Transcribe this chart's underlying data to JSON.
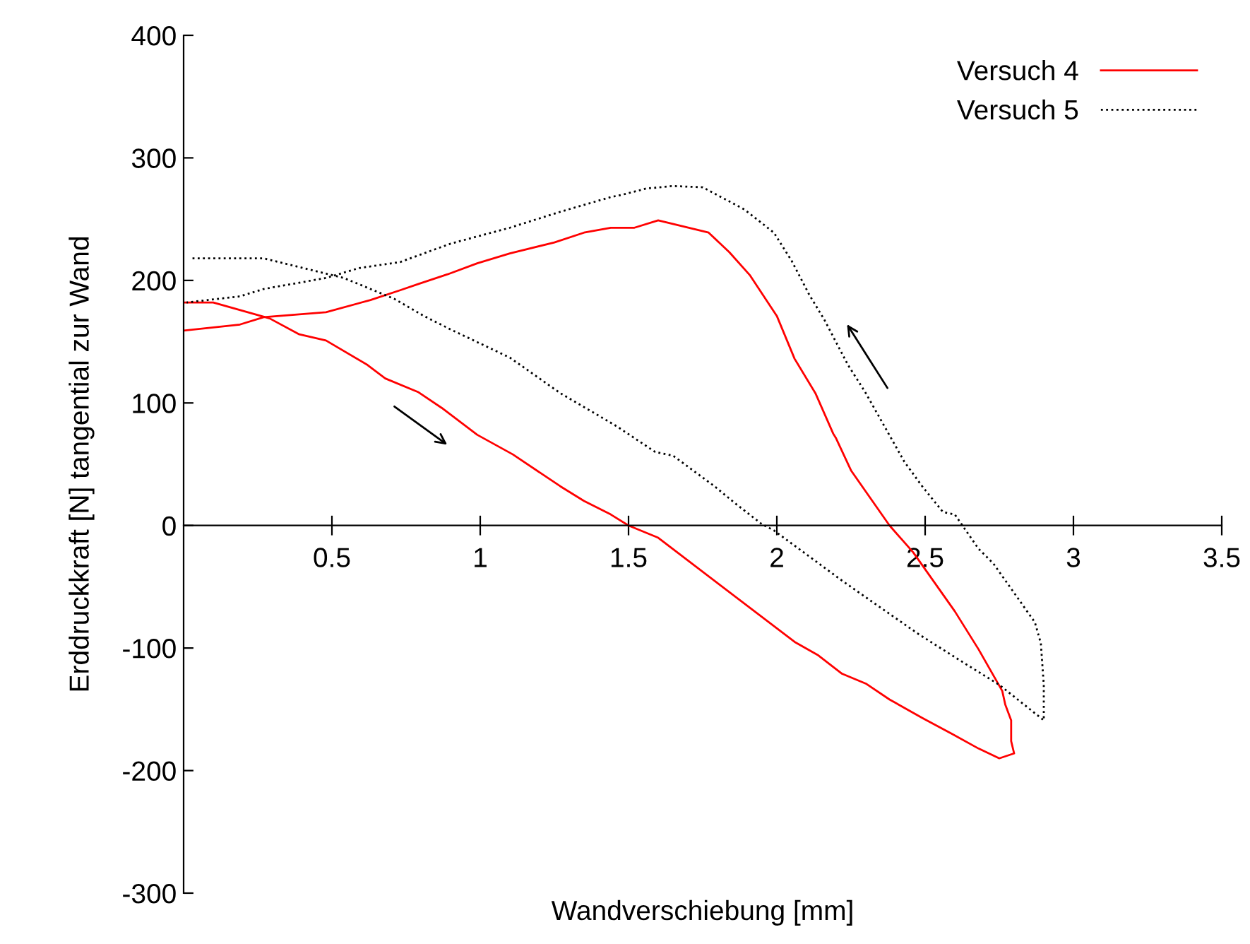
{
  "chart_data": {
    "type": "line",
    "xlabel": "Wandverschiebung [mm]",
    "ylabel": "Erddruckkraft [N] tangential zur Wand",
    "xlim": [
      0,
      3.5
    ],
    "ylim": [
      -300,
      400
    ],
    "xticks": [
      0.5,
      1,
      1.5,
      2,
      2.5,
      3,
      3.5
    ],
    "yticks": [
      -300,
      -200,
      -100,
      0,
      100,
      200,
      300,
      400
    ],
    "grid": false,
    "legend": "top right",
    "marker": "none",
    "series": [
      {
        "name": "Versuch 4",
        "color": "#ff0000",
        "line_style": "solid",
        "x": [
          0,
          0.1,
          0.29,
          0.39,
          0.48,
          0.62,
          0.68,
          0.79,
          0.87,
          0.99,
          1.11,
          1.27,
          1.35,
          1.44,
          1.5,
          1.6,
          2.06,
          2.14,
          2.22,
          2.3,
          2.38,
          2.49,
          2.59,
          2.68,
          2.75,
          2.8,
          2.79,
          2.79,
          2.77,
          2.76,
          2.68,
          2.6,
          2.46,
          2.38,
          2.25,
          2.2,
          2.19,
          2.13,
          2.06,
          2.0,
          1.91,
          1.84,
          1.77,
          1.6,
          1.52,
          1.44,
          1.35,
          1.25,
          1.1,
          0.99,
          0.89,
          0.79,
          0.73,
          0.63,
          0.48,
          0.27,
          0.19,
          0
        ],
        "values": [
          182,
          182,
          169,
          156,
          151,
          131,
          120,
          109,
          96,
          74,
          58,
          32,
          20,
          9,
          0,
          -10,
          -95,
          -106,
          -121,
          -129,
          -142,
          -157,
          -170,
          -182,
          -190,
          -186,
          -176,
          -159,
          -146,
          -135,
          -101,
          -70,
          -22,
          0,
          45,
          71,
          75,
          108,
          136,
          171,
          204,
          223,
          239,
          249,
          243,
          243,
          239,
          231,
          222,
          214,
          205,
          197,
          192,
          184,
          174,
          170,
          164,
          159
        ]
      },
      {
        "name": "Versuch 5",
        "color": "#000000",
        "line_style": "dotted",
        "x": [
          0.03,
          0.27,
          0.54,
          0.71,
          0.81,
          0.9,
          1.1,
          1.27,
          1.46,
          1.59,
          1.65,
          1.79,
          1.86,
          1.95,
          1.99,
          2.22,
          2.32,
          2.48,
          2.63,
          2.75,
          2.9,
          2.9,
          2.89,
          2.87,
          2.73,
          2.68,
          2.6,
          2.56,
          2.49,
          2.43,
          2.3,
          2.24,
          2.16,
          2.11,
          2.05,
          1.99,
          1.89,
          1.82,
          1.75,
          1.65,
          1.56,
          1.48,
          1.44,
          1.27,
          1.1,
          0.9,
          0.73,
          0.59,
          0.48,
          0.27,
          0.19,
          0.01
        ],
        "values": [
          218,
          218,
          202,
          185,
          171,
          160,
          137,
          108,
          81,
          60,
          57,
          32,
          18,
          1,
          -4,
          -45,
          -62,
          -89,
          -112,
          -130,
          -159,
          -130,
          -96,
          -79,
          -31,
          -19,
          9,
          11,
          32,
          52,
          108,
          131,
          168,
          188,
          216,
          239,
          258,
          267,
          276,
          277,
          275,
          270,
          268,
          256,
          243,
          230,
          215,
          210,
          202,
          193,
          187,
          182
        ]
      }
    ]
  }
}
